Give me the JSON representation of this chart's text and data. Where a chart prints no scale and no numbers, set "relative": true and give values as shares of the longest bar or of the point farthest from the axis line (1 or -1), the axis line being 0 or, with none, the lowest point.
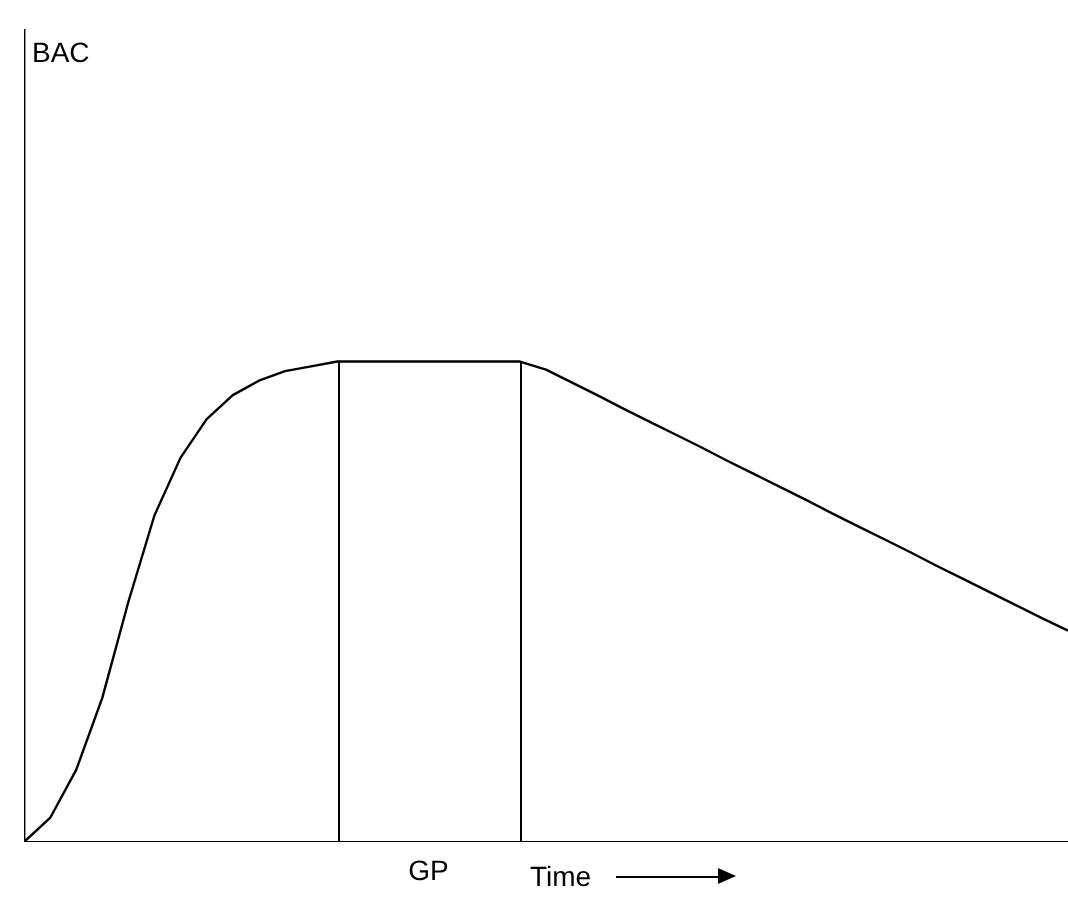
{
  "chart_data": {
    "type": "line",
    "relative": true,
    "xlabel": "Time",
    "annotations": [
      "BAC",
      "GP"
    ],
    "grid": false,
    "legend": false,
    "marker": "none",
    "line_style": "solid",
    "tick_labels": false,
    "categories": [
      null,
      null,
      null,
      null,
      null,
      null,
      null,
      null,
      null,
      null,
      null,
      null,
      null,
      null,
      null,
      null,
      null,
      null,
      null,
      null,
      null,
      null,
      null,
      null,
      null,
      null,
      null,
      null,
      null,
      null,
      null,
      null,
      null,
      null,
      null,
      null,
      null,
      null,
      null,
      null,
      null
    ],
    "series": [
      {
        "color": "#000000",
        "values": [
          0,
          0.05,
          0.15,
          0.3,
          0.5,
          0.68,
          0.8,
          0.88,
          0.93,
          0.96,
          0.98,
          0.99,
          1,
          1,
          1,
          1,
          1,
          1,
          1,
          1,
          0.983,
          0.956,
          0.929,
          0.901,
          0.874,
          0.847,
          0.82,
          0.792,
          0.765,
          0.738,
          0.711,
          0.683,
          0.656,
          0.629,
          0.602,
          0.574,
          0.547,
          0.52,
          0.493,
          0.466,
          0.44
        ]
      }
    ]
  }
}
